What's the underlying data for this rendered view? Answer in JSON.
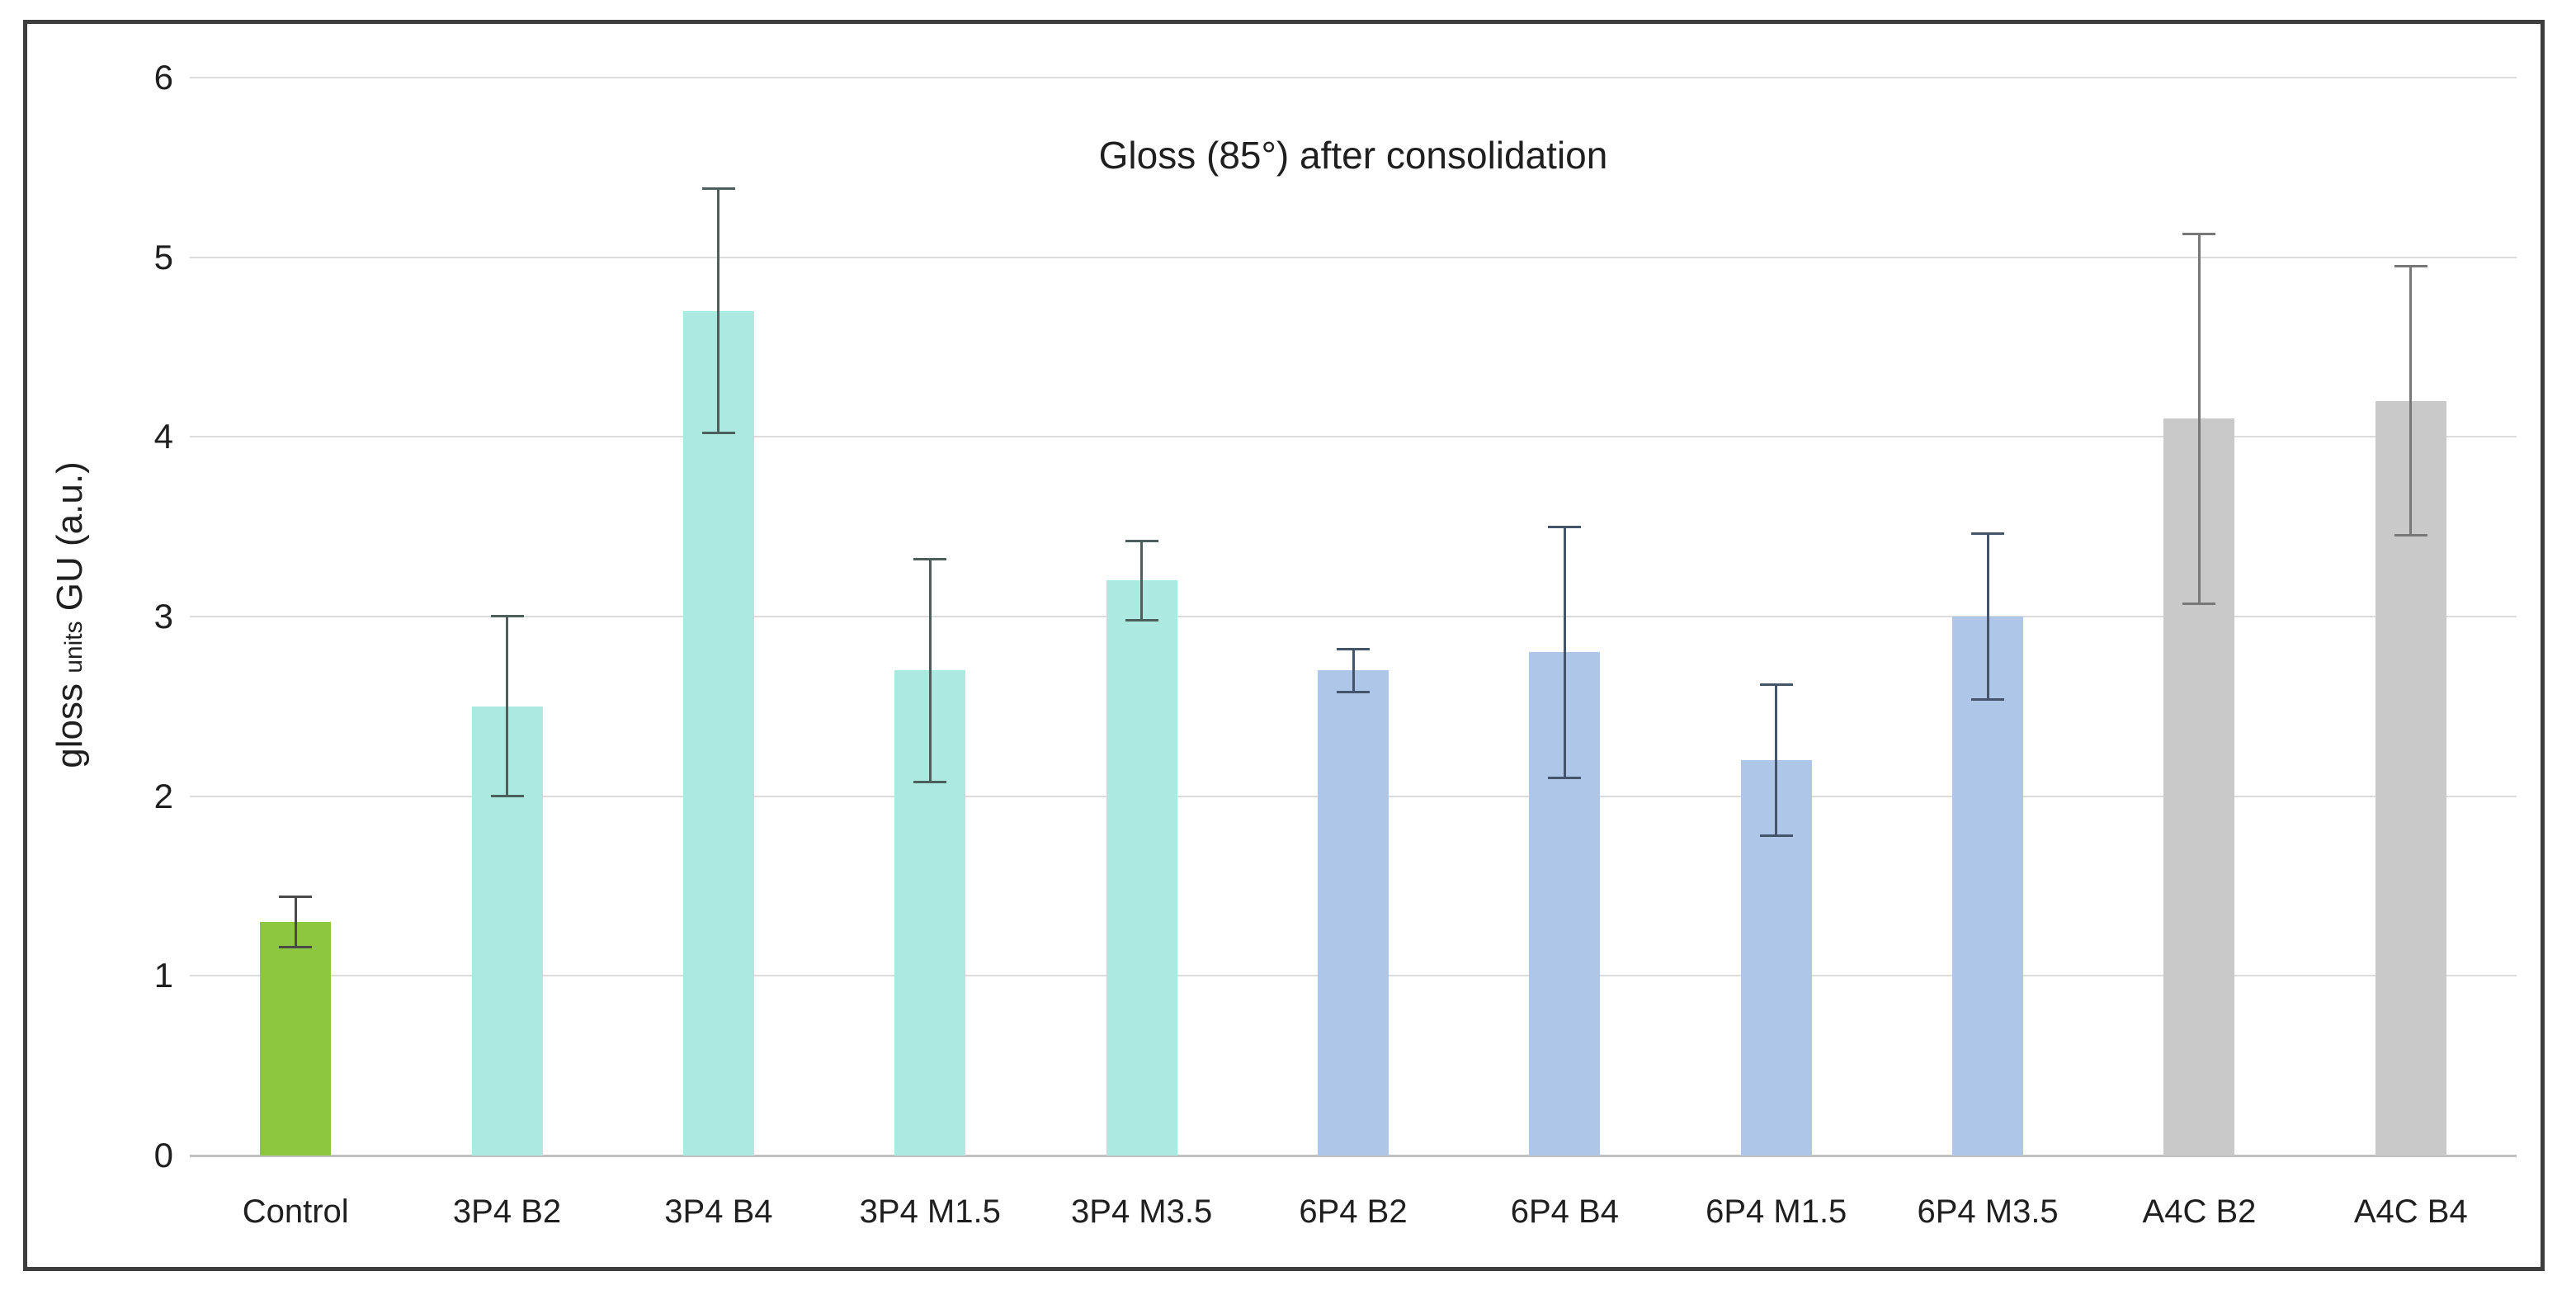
{
  "colors": {
    "background": "#ffffff",
    "frame_border": "#3d3d3d",
    "gridline": "#dcdcdc",
    "axis_baseline": "#c0c0c0",
    "text": "#1f1f1f",
    "control_green": "#8dc63f",
    "teal": "#ace9e0",
    "blue": "#aec6e8",
    "gray": "#c9c9c9"
  },
  "y_axis_title": {
    "prefix": "gloss ",
    "small": "units",
    "suffix": " GU (a.u.)"
  },
  "chart_data": {
    "type": "bar",
    "title": "Gloss (85°) after consolidation",
    "xlabel": "",
    "ylabel": "gloss units GU (a.u.)",
    "ylim": [
      0,
      6
    ],
    "yticks": [
      0,
      1,
      2,
      3,
      4,
      5,
      6
    ],
    "grid": true,
    "legend": "none",
    "categories": [
      "Control",
      "3P4 B2",
      "3P4 B4",
      "3P4 M1.5",
      "3P4 M3.5",
      "6P4 B2",
      "6P4 B4",
      "6P4 M1.5",
      "6P4 M3.5",
      "A4C B2",
      "A4C B4"
    ],
    "values": [
      1.3,
      2.5,
      4.7,
      2.7,
      3.2,
      2.7,
      2.8,
      2.2,
      3.0,
      4.1,
      4.2
    ],
    "errors": [
      0.14,
      0.5,
      0.68,
      0.62,
      0.22,
      0.12,
      0.7,
      0.42,
      0.46,
      1.03,
      0.75
    ],
    "bar_colors": [
      "#8dc63f",
      "#ace9e0",
      "#ace9e0",
      "#ace9e0",
      "#ace9e0",
      "#aec6e8",
      "#aec6e8",
      "#aec6e8",
      "#aec6e8",
      "#c9c9c9",
      "#c9c9c9"
    ],
    "whisker_colors": [
      "#4a4a4a",
      "#4d5f5d",
      "#4d5f5d",
      "#4d5f5d",
      "#4d5f5d",
      "#44546a",
      "#44546a",
      "#44546a",
      "#44546a",
      "#787878",
      "#787878"
    ]
  }
}
